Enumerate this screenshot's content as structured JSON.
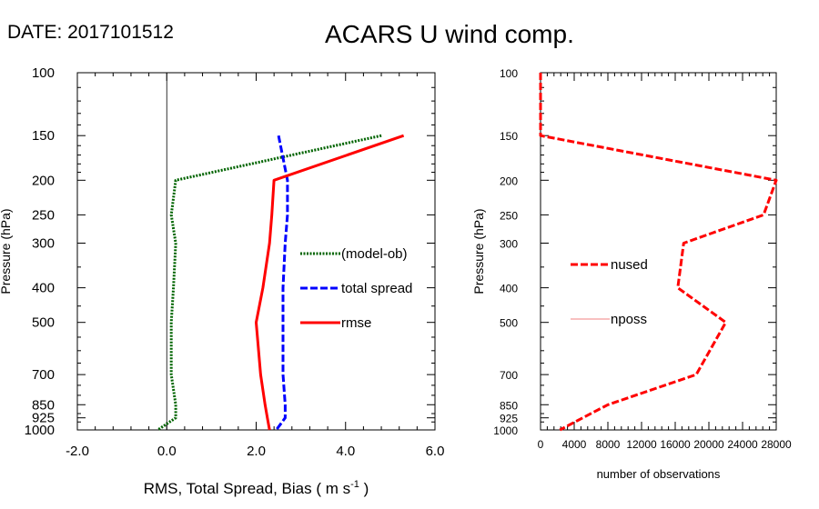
{
  "header": {
    "date_label": "DATE: 2017101512",
    "title": "ACARS U wind comp."
  },
  "chart_data": [
    {
      "type": "line",
      "ylabel": "Pressure (hPa)",
      "xlabel": "RMS, Total Spread, Bias ( m s",
      "xlabel_exp": "-1",
      "xlabel_tail": " )",
      "y_scale": "log",
      "y_reversed": true,
      "ylim": [
        100,
        1000
      ],
      "xlim": [
        -2.0,
        6.0
      ],
      "y_ticks": [
        100,
        150,
        200,
        250,
        300,
        400,
        500,
        700,
        850,
        925,
        1000
      ],
      "x_ticks": [
        -2.0,
        0.0,
        2.0,
        4.0,
        6.0
      ],
      "x_tick_labels": [
        "-2.0",
        "0.0",
        "2.0",
        "4.0",
        "6.0"
      ],
      "zero_line": true,
      "legend_position": "right-middle",
      "series": [
        {
          "name": "(model-ob)",
          "color": "#006400",
          "style": "dotted",
          "points": [
            [
              4.8,
              150
            ],
            [
              0.2,
              200
            ],
            [
              0.1,
              250
            ],
            [
              0.2,
              300
            ],
            [
              0.15,
              400
            ],
            [
              0.1,
              500
            ],
            [
              0.1,
              700
            ],
            [
              0.2,
              850
            ],
            [
              0.2,
              925
            ],
            [
              -0.2,
              1000
            ]
          ]
        },
        {
          "name": "total spread",
          "color": "#0000ff",
          "style": "dashed",
          "points": [
            [
              2.5,
              150
            ],
            [
              2.7,
              200
            ],
            [
              2.7,
              250
            ],
            [
              2.65,
              300
            ],
            [
              2.6,
              400
            ],
            [
              2.6,
              500
            ],
            [
              2.6,
              700
            ],
            [
              2.65,
              850
            ],
            [
              2.65,
              925
            ],
            [
              2.45,
              1000
            ]
          ]
        },
        {
          "name": "rmse",
          "color": "#ff0000",
          "style": "solid",
          "points": [
            [
              5.3,
              150
            ],
            [
              2.4,
              200
            ],
            [
              2.35,
              250
            ],
            [
              2.3,
              300
            ],
            [
              2.15,
              400
            ],
            [
              2.0,
              500
            ],
            [
              2.1,
              700
            ],
            [
              2.2,
              850
            ],
            [
              2.25,
              925
            ],
            [
              2.3,
              1000
            ]
          ]
        }
      ]
    },
    {
      "type": "line",
      "ylabel": "Pressure (hPa)",
      "xlabel": "number of observations",
      "y_scale": "log",
      "y_reversed": true,
      "ylim": [
        100,
        1000
      ],
      "xlim": [
        0,
        28000
      ],
      "y_ticks": [
        100,
        150,
        200,
        250,
        300,
        400,
        500,
        700,
        850,
        925,
        1000
      ],
      "x_ticks": [
        0,
        4000,
        8000,
        12000,
        16000,
        20000,
        24000,
        28000
      ],
      "legend_position": "left-middle",
      "series": [
        {
          "name": "nused",
          "color": "#ff0000",
          "style": "dashed",
          "points": [
            [
              0,
              100
            ],
            [
              0,
              150
            ],
            [
              28000,
              200
            ],
            [
              26500,
              250
            ],
            [
              17000,
              300
            ],
            [
              16300,
              400
            ],
            [
              22000,
              500
            ],
            [
              18500,
              700
            ],
            [
              8000,
              850
            ],
            [
              5000,
              925
            ],
            [
              2300,
              1000
            ]
          ]
        },
        {
          "name": "nposs",
          "color": "#f08080",
          "style": "thin",
          "points": []
        }
      ]
    }
  ]
}
